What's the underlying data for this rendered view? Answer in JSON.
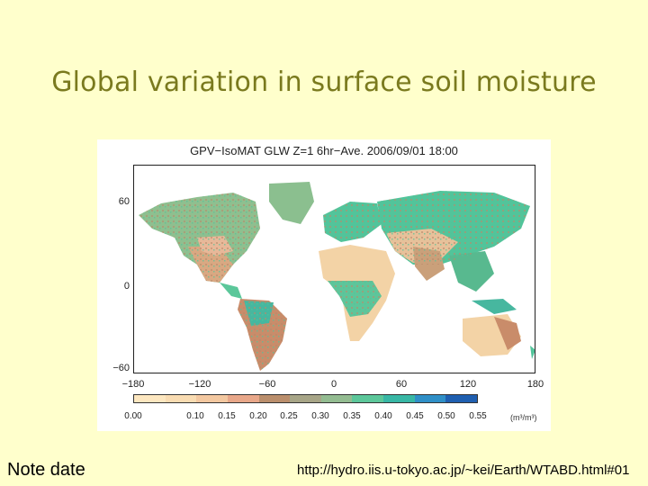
{
  "slide": {
    "title": "Global variation in surface soil moisture",
    "note": "Note date",
    "source": "http://hydro.iis.u-tokyo.ac.jp/~kei/Earth/WTABD.html#01"
  },
  "figure": {
    "title": "GPV−IsoMAT GLW Z=1 6hr−Ave. 2006/09/01 18:00",
    "y_ticks": [
      "60",
      "0",
      "−60"
    ],
    "x_ticks": [
      "−180",
      "−120",
      "−60",
      "0",
      "60",
      "120",
      "180"
    ],
    "colorbar": {
      "labels": [
        "0.00",
        "0.10",
        "0.15",
        "0.20",
        "0.25",
        "0.30",
        "0.35",
        "0.40",
        "0.45",
        "0.50",
        "0.55"
      ],
      "unit": "(m³/m³)",
      "colors": [
        "#fde7c0",
        "#f9dcb2",
        "#f3c8a0",
        "#e8a789",
        "#ba8e6c",
        "#a7a587",
        "#93bc91",
        "#5cc79a",
        "#38b7a5",
        "#2f8fc7",
        "#1f5fb0"
      ]
    }
  }
}
